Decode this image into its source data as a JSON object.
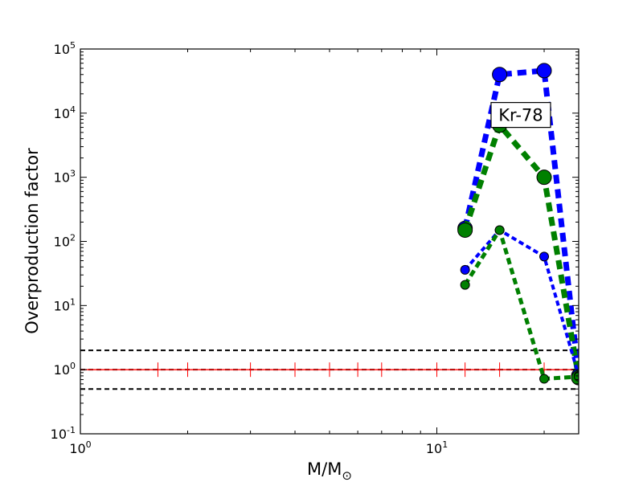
{
  "chart_data": {
    "type": "line",
    "title": "",
    "xlabel": "M/M⊙",
    "ylabel": "Overproduction factor",
    "xscale": "log",
    "yscale": "log",
    "xlim": [
      1,
      25
    ],
    "ylim": [
      0.1,
      100000
    ],
    "grid": false,
    "legend": "none",
    "x_ticks": [
      {
        "value": 1,
        "base": "10",
        "exp": "0"
      },
      {
        "value": 10,
        "base": "10",
        "exp": "1"
      }
    ],
    "y_ticks": [
      {
        "value": 0.1,
        "base": "10",
        "exp": "-1"
      },
      {
        "value": 1,
        "base": "10",
        "exp": "0"
      },
      {
        "value": 10,
        "base": "10",
        "exp": "1"
      },
      {
        "value": 100,
        "base": "10",
        "exp": "2"
      },
      {
        "value": 1000,
        "base": "10",
        "exp": "3"
      },
      {
        "value": 10000,
        "base": "10",
        "exp": "4"
      },
      {
        "value": 100000,
        "base": "10",
        "exp": "5"
      }
    ],
    "annotation": {
      "text": "Kr-78",
      "x": 17.2,
      "y": 9500
    },
    "reference_lines": [
      {
        "y": 2,
        "color": "#000000",
        "style": "dashed"
      },
      {
        "y": 1,
        "color": "#000000",
        "style": "dashed"
      },
      {
        "y": 0.5,
        "color": "#000000",
        "style": "dashed"
      }
    ],
    "baseline": {
      "y": 1,
      "color": "#ff0000",
      "tick_x": [
        1.65,
        2,
        3,
        4,
        5,
        6,
        7,
        10,
        12,
        15,
        20,
        25
      ]
    },
    "series": [
      {
        "color": "#0000ff",
        "width": 7,
        "marker_r": 9,
        "x": [
          12,
          15,
          20,
          25
        ],
        "y": [
          160,
          40000,
          46000,
          0.8
        ]
      },
      {
        "color": "#008000",
        "width": 7,
        "marker_r": 9,
        "x": [
          12,
          15,
          20,
          25
        ],
        "y": [
          150,
          6500,
          1000,
          0.75
        ]
      },
      {
        "color": "#0000ff",
        "width": 4,
        "marker_r": 5.5,
        "x": [
          12,
          15,
          20,
          25
        ],
        "y": [
          36,
          150,
          58,
          0.8
        ]
      },
      {
        "color": "#008000",
        "width": 5,
        "marker_r": 5.5,
        "x": [
          12,
          15,
          20,
          25
        ],
        "y": [
          21,
          150,
          0.72,
          0.78
        ]
      }
    ]
  }
}
